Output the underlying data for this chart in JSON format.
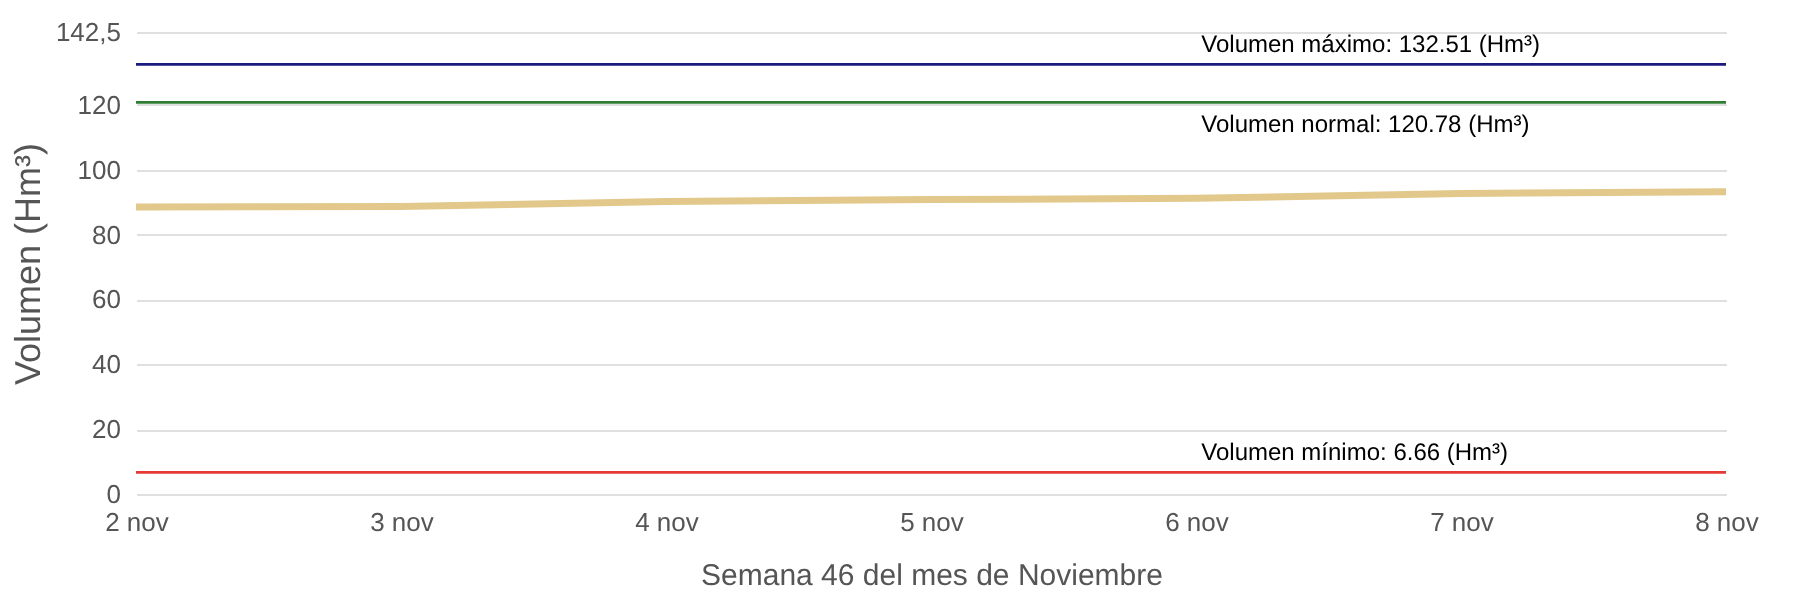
{
  "chart_data": {
    "type": "line",
    "xlabel": "Semana 46 del mes de Noviembre",
    "ylabel": "Volumen (Hm³)",
    "categories": [
      "2 nov",
      "3 nov",
      "4 nov",
      "5 nov",
      "6 nov",
      "7 nov",
      "8 nov"
    ],
    "series": [
      {
        "color": "#e2c98b",
        "values": [
          88.5,
          88.7,
          90.2,
          90.8,
          91.2,
          92.7,
          93.2
        ]
      }
    ],
    "ylim": [
      0,
      142.5
    ],
    "yticks": [
      0,
      20,
      40,
      60,
      80,
      100,
      120,
      {
        "value": 142.5,
        "label": "142,5"
      }
    ],
    "grid": "y",
    "marker": "none",
    "line_style": "solid",
    "ref_lines": [
      {
        "axis": "y",
        "value": 132.51,
        "label": "Volumen máximo: 132.51 (Hm³)",
        "color": "#1a1a80"
      },
      {
        "axis": "y",
        "value": 120.78,
        "label": "Volumen normal: 120.78 (Hm³)",
        "color": "#2e7d32"
      },
      {
        "axis": "y",
        "value": 6.66,
        "label": "Volumen mínimo: 6.66 (Hm³)",
        "color": "#e53935"
      }
    ]
  }
}
